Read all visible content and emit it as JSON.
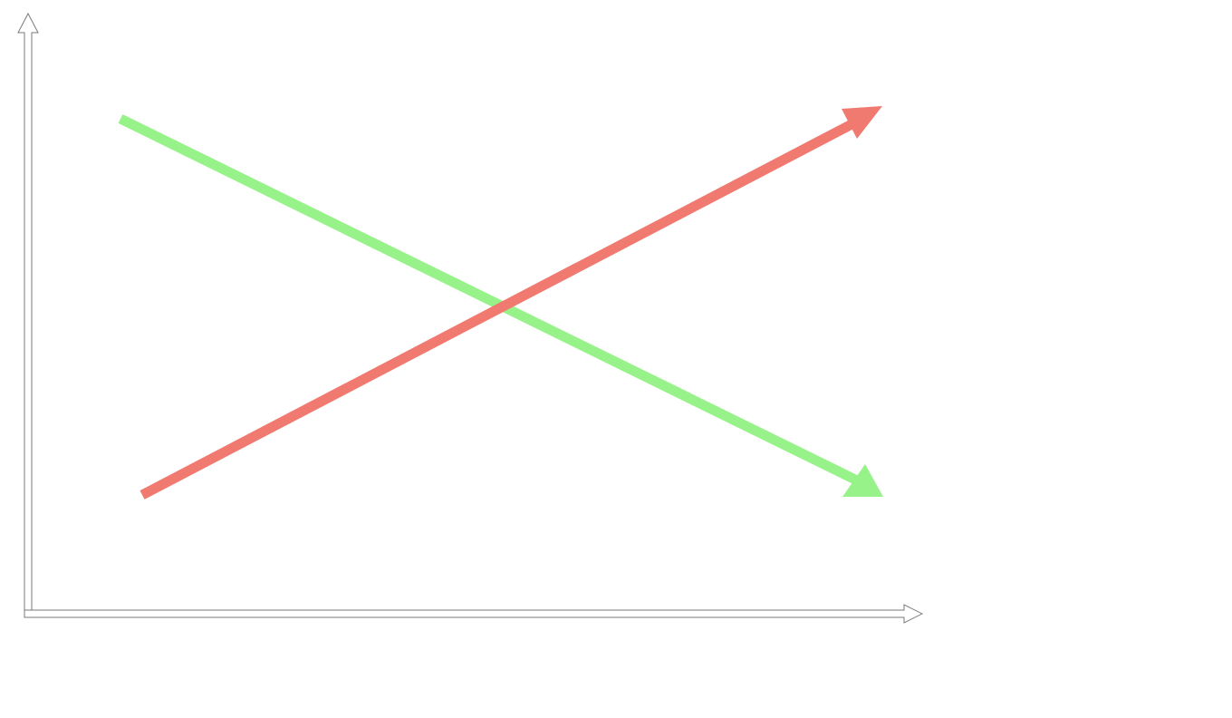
{
  "diagram": {
    "axes": {
      "color": "#7a7a7a",
      "style": "hollow double-line arrows",
      "directions": [
        "up",
        "right"
      ]
    },
    "arrows": [
      {
        "id": "decreasing",
        "direction": "down-right",
        "color": "#98f28a",
        "label": ""
      },
      {
        "id": "increasing",
        "direction": "up-right",
        "color": "#f07a70",
        "label": ""
      }
    ]
  }
}
